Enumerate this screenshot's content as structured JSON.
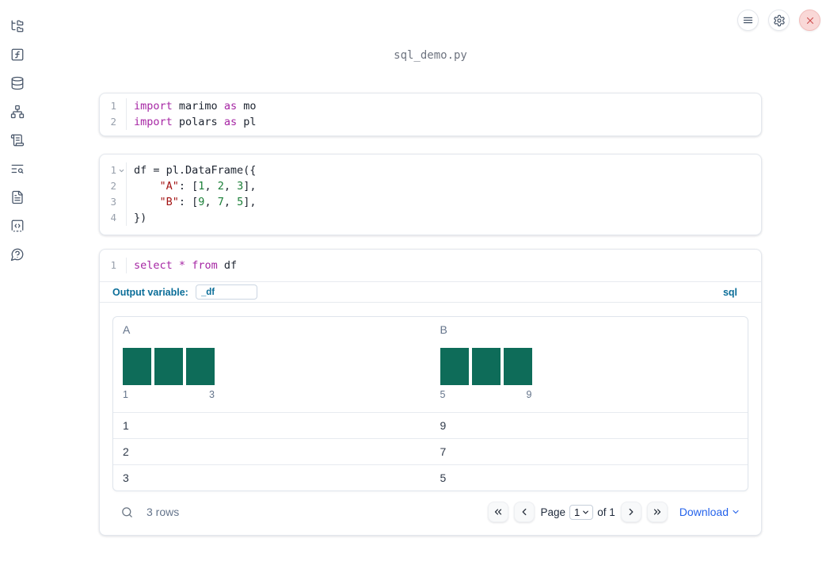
{
  "window": {
    "title": "sql_demo.py"
  },
  "sidebar": {
    "icons": [
      "file-tree-icon",
      "function-square-icon",
      "database-icon",
      "dependency-graph-icon",
      "scroll-icon",
      "list-search-icon",
      "document-icon",
      "code-snippets-icon",
      "help-bubble-icon"
    ]
  },
  "topbar": {
    "icons": [
      "menu-icon",
      "gear-icon",
      "shutdown-x-icon"
    ]
  },
  "cells": [
    {
      "lines": [
        {
          "n": "1",
          "tokens": [
            {
              "t": "import",
              "c": "kw"
            },
            {
              "t": " marimo ",
              "c": "pl"
            },
            {
              "t": "as",
              "c": "kw"
            },
            {
              "t": " mo",
              "c": "pl"
            }
          ]
        },
        {
          "n": "2",
          "tokens": [
            {
              "t": "import",
              "c": "kw"
            },
            {
              "t": " polars ",
              "c": "pl"
            },
            {
              "t": "as",
              "c": "kw"
            },
            {
              "t": " pl",
              "c": "pl"
            }
          ]
        }
      ]
    },
    {
      "lines": [
        {
          "n": "1",
          "fold": true,
          "tokens": [
            {
              "t": "df = pl.DataFrame({",
              "c": "pl"
            }
          ]
        },
        {
          "n": "2",
          "tokens": [
            {
              "t": "    ",
              "c": "pl"
            },
            {
              "t": "\"A\"",
              "c": "str"
            },
            {
              "t": ": [",
              "c": "pl"
            },
            {
              "t": "1",
              "c": "num"
            },
            {
              "t": ", ",
              "c": "pl"
            },
            {
              "t": "2",
              "c": "num"
            },
            {
              "t": ", ",
              "c": "pl"
            },
            {
              "t": "3",
              "c": "num"
            },
            {
              "t": "],",
              "c": "pl"
            }
          ]
        },
        {
          "n": "3",
          "tokens": [
            {
              "t": "    ",
              "c": "pl"
            },
            {
              "t": "\"B\"",
              "c": "str"
            },
            {
              "t": ": [",
              "c": "pl"
            },
            {
              "t": "9",
              "c": "num"
            },
            {
              "t": ", ",
              "c": "pl"
            },
            {
              "t": "7",
              "c": "num"
            },
            {
              "t": ", ",
              "c": "pl"
            },
            {
              "t": "5",
              "c": "num"
            },
            {
              "t": "],",
              "c": "pl"
            }
          ]
        },
        {
          "n": "4",
          "tokens": [
            {
              "t": "})",
              "c": "pl"
            }
          ]
        }
      ]
    },
    {
      "lines": [
        {
          "n": "1",
          "tokens": [
            {
              "t": "select",
              "c": "kw"
            },
            {
              "t": " ",
              "c": "pl"
            },
            {
              "t": "*",
              "c": "kw"
            },
            {
              "t": " ",
              "c": "pl"
            },
            {
              "t": "from",
              "c": "kw"
            },
            {
              "t": " df",
              "c": "pl"
            }
          ]
        }
      ]
    }
  ],
  "sql_cell": {
    "output_variable_label": "Output variable:",
    "output_variable_value": "_df",
    "language_badge": "sql"
  },
  "table": {
    "columns": [
      {
        "name": "A",
        "hist": {
          "bars": [
            1,
            1,
            1
          ],
          "min_label": "1",
          "max_label": "3"
        }
      },
      {
        "name": "B",
        "hist": {
          "bars": [
            1,
            1,
            1
          ],
          "min_label": "5",
          "max_label": "9"
        }
      }
    ],
    "rows": [
      [
        "1",
        "9"
      ],
      [
        "2",
        "7"
      ],
      [
        "3",
        "5"
      ]
    ],
    "footer": {
      "row_count": "3 rows",
      "page_label": "Page",
      "page_value": "1",
      "of_label": "of 1",
      "download_label": "Download"
    }
  },
  "colors": {
    "keyword": "#a626a4",
    "string": "#a31515",
    "number": "#1a7f37",
    "histogram_bar": "#0e6c59",
    "accent": "#0b6e99",
    "link": "#2563eb"
  }
}
